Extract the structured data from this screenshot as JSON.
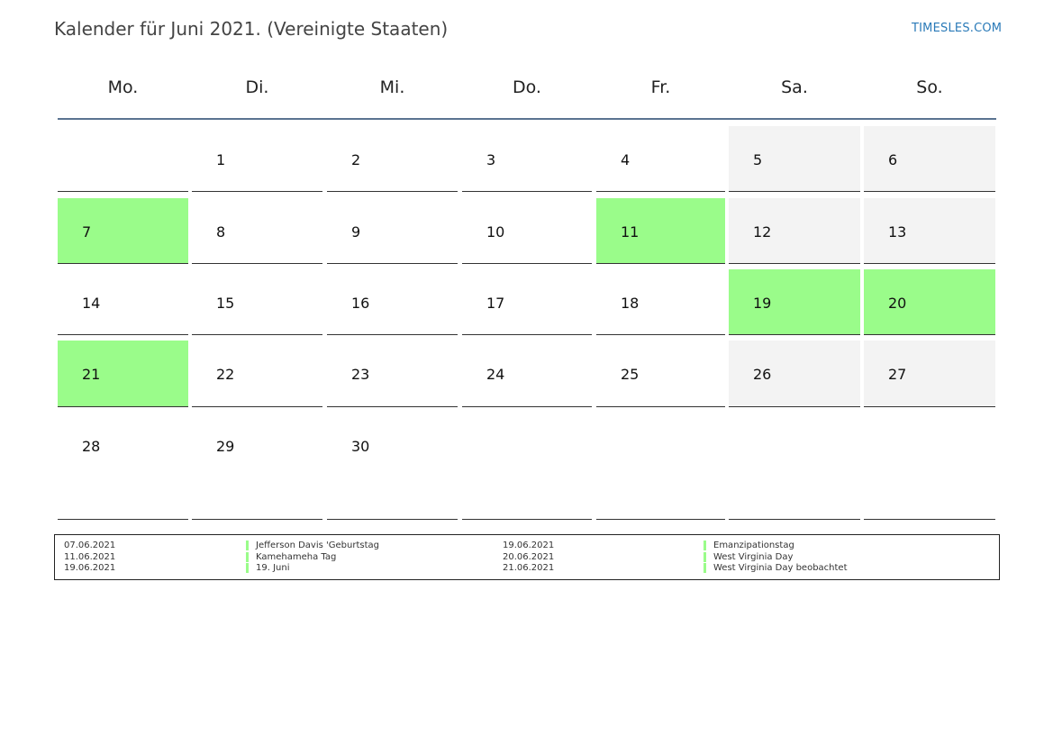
{
  "title": "Kalender für Juni 2021. (Vereinigte Staaten)",
  "brand": "TIMESLES.COM",
  "colors": {
    "holiday": "#9afc8a",
    "weekend": "#f3f3f3",
    "header_rule": "#5a7391",
    "brand": "#2a7ab8"
  },
  "weekdays": [
    "Mo.",
    "Di.",
    "Mi.",
    "Do.",
    "Fr.",
    "Sa.",
    "So."
  ],
  "weeks": [
    [
      {
        "day": "",
        "type": "normal"
      },
      {
        "day": "1",
        "type": "normal"
      },
      {
        "day": "2",
        "type": "normal"
      },
      {
        "day": "3",
        "type": "normal"
      },
      {
        "day": "4",
        "type": "normal"
      },
      {
        "day": "5",
        "type": "weekend"
      },
      {
        "day": "6",
        "type": "weekend"
      }
    ],
    [
      {
        "day": "7",
        "type": "holiday"
      },
      {
        "day": "8",
        "type": "normal"
      },
      {
        "day": "9",
        "type": "normal"
      },
      {
        "day": "10",
        "type": "normal"
      },
      {
        "day": "11",
        "type": "holiday"
      },
      {
        "day": "12",
        "type": "weekend"
      },
      {
        "day": "13",
        "type": "weekend"
      }
    ],
    [
      {
        "day": "14",
        "type": "normal"
      },
      {
        "day": "15",
        "type": "normal"
      },
      {
        "day": "16",
        "type": "normal"
      },
      {
        "day": "17",
        "type": "normal"
      },
      {
        "day": "18",
        "type": "normal"
      },
      {
        "day": "19",
        "type": "holiday"
      },
      {
        "day": "20",
        "type": "holiday"
      }
    ],
    [
      {
        "day": "21",
        "type": "holiday"
      },
      {
        "day": "22",
        "type": "normal"
      },
      {
        "day": "23",
        "type": "normal"
      },
      {
        "day": "24",
        "type": "normal"
      },
      {
        "day": "25",
        "type": "normal"
      },
      {
        "day": "26",
        "type": "weekend"
      },
      {
        "day": "27",
        "type": "weekend"
      }
    ],
    [
      {
        "day": "28",
        "type": "normal"
      },
      {
        "day": "29",
        "type": "normal"
      },
      {
        "day": "30",
        "type": "normal"
      },
      {
        "day": "",
        "type": "normal"
      },
      {
        "day": "",
        "type": "normal"
      },
      {
        "day": "",
        "type": "normal"
      },
      {
        "day": "",
        "type": "normal"
      }
    ]
  ],
  "holidays": [
    {
      "date": "07.06.2021",
      "name": "Jefferson Davis 'Geburtstag"
    },
    {
      "date": "11.06.2021",
      "name": "Kamehameha Tag"
    },
    {
      "date": "19.06.2021",
      "name": "19. Juni"
    },
    {
      "date": "19.06.2021",
      "name": "Emanzipationstag"
    },
    {
      "date": "20.06.2021",
      "name": "West Virginia Day"
    },
    {
      "date": "21.06.2021",
      "name": "West Virginia Day beobachtet"
    }
  ]
}
